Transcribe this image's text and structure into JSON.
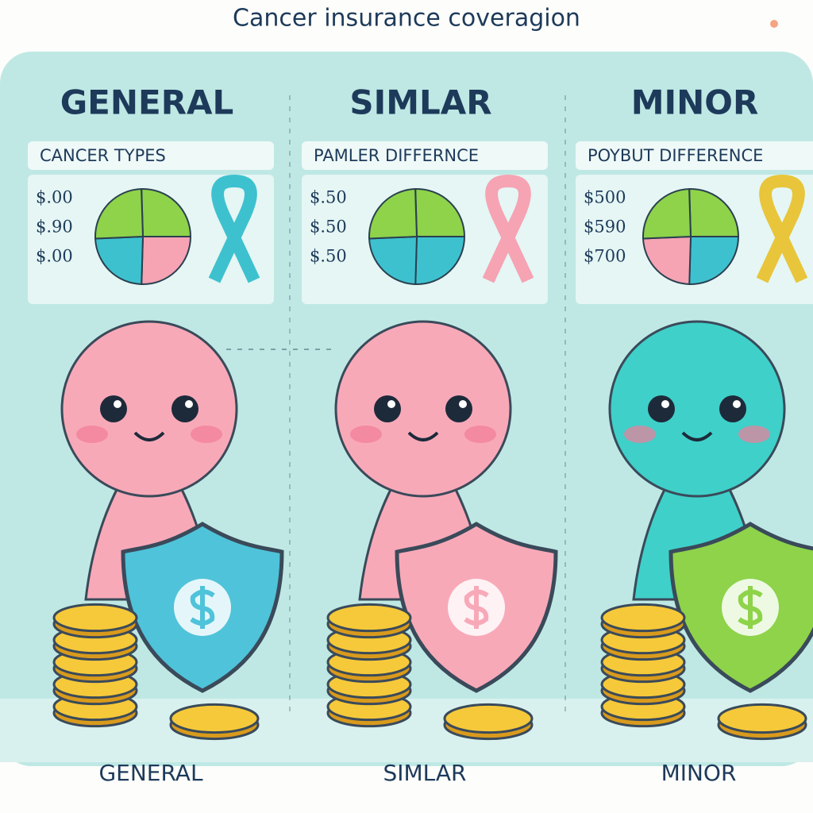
{
  "title": "Cancer insurance coveragion",
  "columns": [
    {
      "heading": "GENERAL",
      "box_label": "CANCER TYPES",
      "prices": [
        "$.00",
        "$.90",
        "$.00"
      ],
      "footer": "GENERAL"
    },
    {
      "heading": "SIMLAR",
      "box_label": "PAMLER DIFFERNCE",
      "prices": [
        "$.50",
        "$.50",
        "$.50"
      ],
      "footer": "SIMLAR"
    },
    {
      "heading": "MINOR",
      "box_label": "POYBUT DIFFERENCE",
      "prices": [
        "$500",
        "$590",
        "$700"
      ],
      "footer": "MINOR"
    }
  ]
}
